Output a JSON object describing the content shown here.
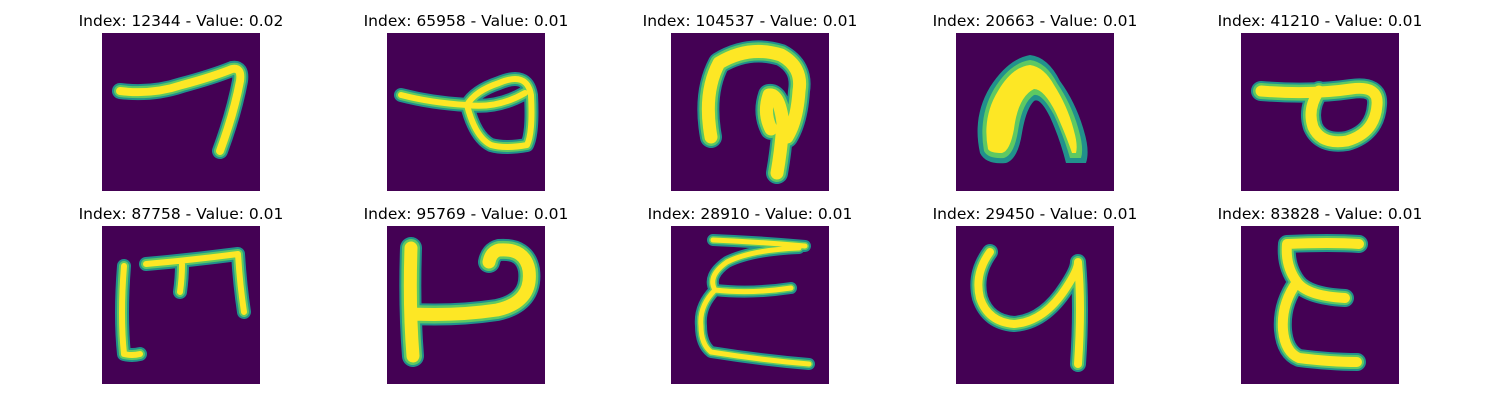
{
  "colors": {
    "background": "#440154",
    "stroke": "#fde725",
    "edge_outer": "#21918c",
    "edge_inner": "#5ec962"
  },
  "panels": [
    {
      "title": "Index: 12344 - Value: 0.02",
      "glyph": "handwritten-mark"
    },
    {
      "title": "Index: 65958 - Value: 0.01",
      "glyph": "handwritten-mark"
    },
    {
      "title": "Index: 104537 - Value: 0.01",
      "glyph": "handwritten-mark"
    },
    {
      "title": "Index: 20663 - Value: 0.01",
      "glyph": "handwritten-mark"
    },
    {
      "title": "Index: 41210 - Value: 0.01",
      "glyph": "handwritten-mark"
    },
    {
      "title": "Index: 87758 - Value: 0.01",
      "glyph": "handwritten-mark"
    },
    {
      "title": "Index: 95769 - Value: 0.01",
      "glyph": "handwritten-mark"
    },
    {
      "title": "Index: 28910 - Value: 0.01",
      "glyph": "handwritten-mark"
    },
    {
      "title": "Index: 29450 - Value: 0.01",
      "glyph": "handwritten-mark"
    },
    {
      "title": "Index: 83828 - Value: 0.01",
      "glyph": "handwritten-mark"
    }
  ]
}
